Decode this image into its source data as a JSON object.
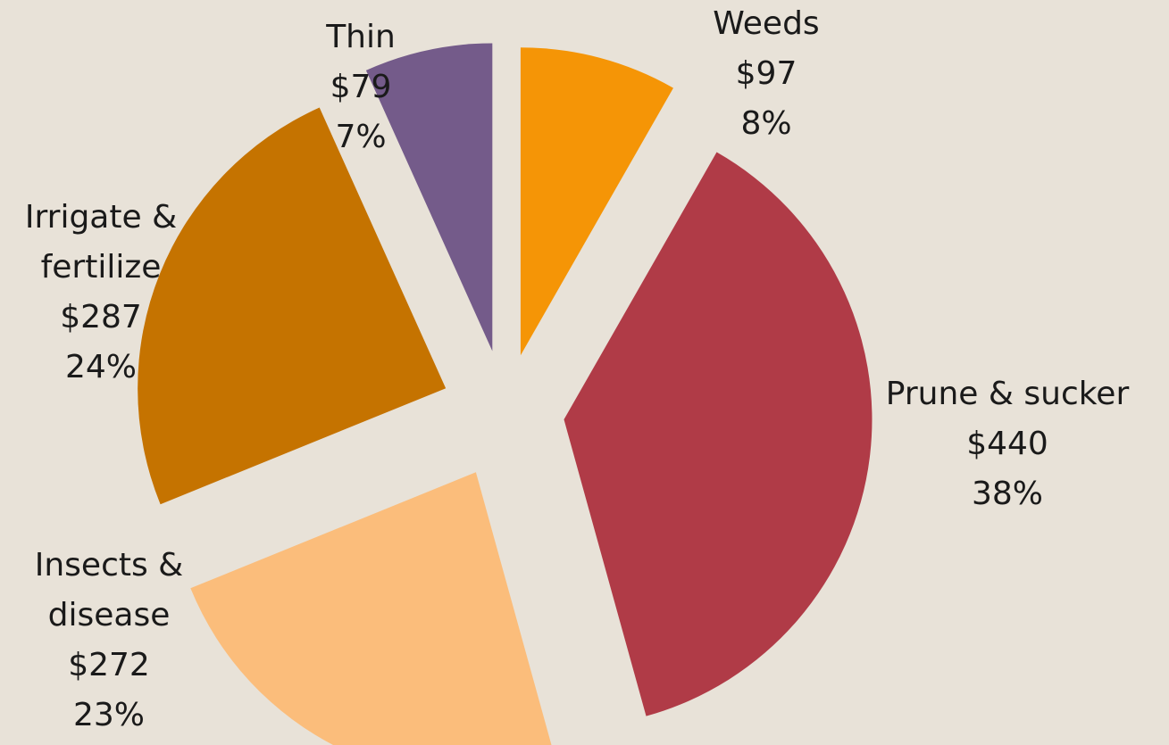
{
  "chart_data": {
    "type": "pie",
    "exploded": true,
    "start_angle_deg": 0,
    "direction": "clockwise",
    "slices": [
      {
        "name": "Weeds",
        "value_label": "$97",
        "pct_label": "8%",
        "value": 97,
        "color": "#f59506"
      },
      {
        "name": "Prune & sucker",
        "value_label": "$440",
        "pct_label": "38%",
        "value": 440,
        "color": "#b03b47"
      },
      {
        "name": "Insects & disease",
        "value_label": "$272",
        "pct_label": "23%",
        "value": 272,
        "color": "#fbbd7b"
      },
      {
        "name": "Irrigate & fertilize",
        "value_label": "$287",
        "pct_label": "24%",
        "value": 287,
        "color": "#c57300"
      },
      {
        "name": "Thin",
        "value_label": "$79",
        "pct_label": "7%",
        "value": 79,
        "color": "#745b8a"
      }
    ],
    "label_lines": [
      [
        "Weeds",
        "$97",
        "8%"
      ],
      [
        "Prune & sucker",
        "$440",
        "38%"
      ],
      [
        "Insects &",
        "disease",
        "$272",
        "23%"
      ],
      [
        "Irrigate &",
        "fertilize",
        "$287",
        "24%"
      ],
      [
        "Thin",
        "$79",
        "7%"
      ]
    ]
  }
}
